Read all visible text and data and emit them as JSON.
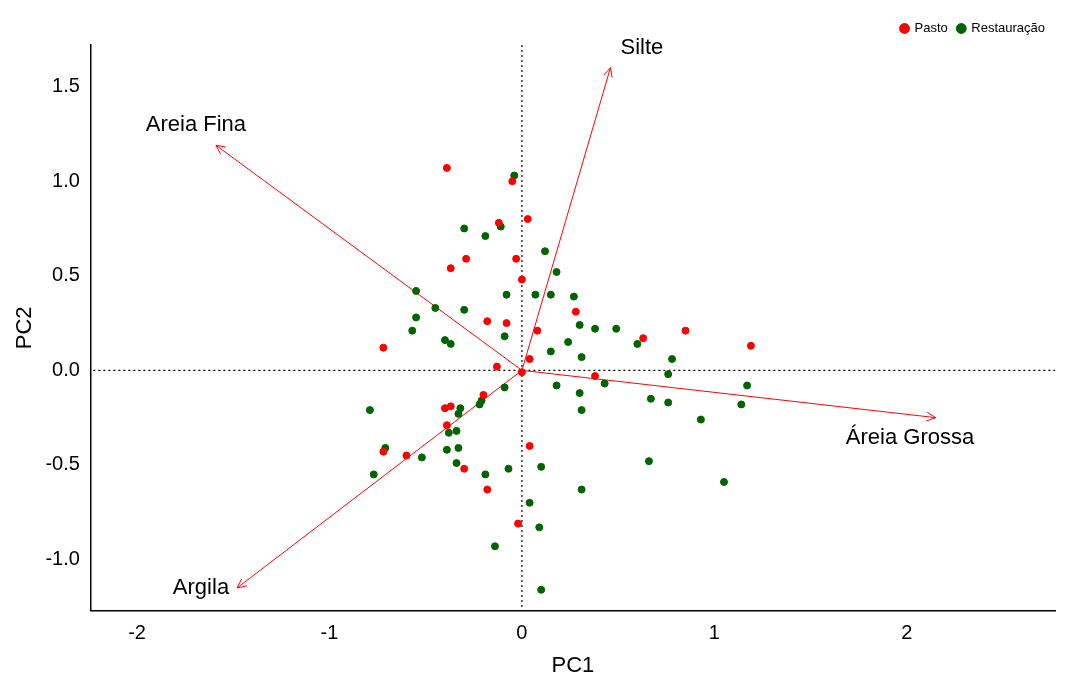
{
  "chart_data": {
    "type": "scatter",
    "xlabel": "PC1",
    "ylabel": "PC2",
    "xlim": [
      -2.24,
      2.77
    ],
    "ylim": [
      -1.27,
      1.72
    ],
    "xticks": [
      -2,
      -1,
      0,
      1,
      2
    ],
    "yticks": [
      {
        "value": -1,
        "label": "-1.0"
      },
      -0.5,
      {
        "value": 0,
        "label": "0.0"
      },
      0.5,
      {
        "value": 1,
        "label": "1.0"
      },
      1.5
    ],
    "grid": false,
    "legend": "top right",
    "marker": "circle",
    "series": [
      {
        "name": "Pasto",
        "color": "#ff0000",
        "x": [
          -0.39,
          -0.05,
          0.03,
          -0.12,
          -0.03,
          -0.29,
          -0.37,
          0.0,
          -0.18,
          -0.08,
          0.08,
          0.04,
          -0.13,
          0.0,
          0.28,
          -0.72,
          0.63,
          0.85,
          1.19,
          0.38,
          -0.2,
          -0.4,
          -0.37,
          -0.39,
          -0.72,
          -0.6,
          -0.3,
          -0.18,
          0.04,
          -0.02
        ],
        "values": [
          1.07,
          1.0,
          0.8,
          0.78,
          0.59,
          0.59,
          0.54,
          0.48,
          0.26,
          0.25,
          0.21,
          0.06,
          0.02,
          -0.01,
          0.31,
          0.12,
          0.17,
          0.21,
          0.13,
          -0.03,
          -0.13,
          -0.2,
          -0.19,
          -0.29,
          -0.43,
          -0.45,
          -0.52,
          -0.63,
          -0.4,
          -0.81
        ]
      },
      {
        "name": "Restauração",
        "color": "#006400",
        "x": [
          -0.04,
          -0.11,
          -0.3,
          -0.19,
          0.12,
          0.18,
          -0.08,
          0.07,
          0.15,
          0.27,
          -0.55,
          -0.45,
          -0.3,
          -0.55,
          -0.57,
          -0.4,
          -0.37,
          -0.09,
          0.3,
          0.38,
          0.24,
          0.31,
          0.15,
          0.49,
          0.6,
          0.78,
          0.76,
          0.43,
          0.18,
          0.3,
          0.31,
          0.67,
          0.76,
          0.93,
          1.14,
          1.17,
          0.66,
          1.05,
          0.31,
          -0.09,
          -0.22,
          -0.21,
          -0.79,
          -0.32,
          -0.33,
          -0.38,
          -0.34,
          -0.71,
          -0.52,
          -0.39,
          -0.33,
          -0.34,
          -0.77,
          -0.19,
          -0.07,
          0.1,
          0.04,
          0.09,
          -0.14,
          0.1
        ],
        "values": [
          1.03,
          0.76,
          0.75,
          0.71,
          0.63,
          0.52,
          0.4,
          0.4,
          0.4,
          0.39,
          0.42,
          0.33,
          0.32,
          0.28,
          0.21,
          0.16,
          0.14,
          0.18,
          0.24,
          0.22,
          0.15,
          0.07,
          0.1,
          0.22,
          0.14,
          0.06,
          -0.02,
          -0.07,
          -0.08,
          -0.12,
          -0.21,
          -0.15,
          -0.17,
          -0.26,
          -0.18,
          -0.08,
          -0.48,
          -0.59,
          -0.63,
          -0.09,
          -0.18,
          -0.16,
          -0.21,
          -0.2,
          -0.23,
          -0.33,
          -0.32,
          -0.41,
          -0.46,
          -0.42,
          -0.41,
          -0.49,
          -0.55,
          -0.55,
          -0.52,
          -0.51,
          -0.7,
          -0.83,
          -0.93,
          -1.16
        ]
      },
      {
        "type": "line",
        "color": "#ff0000",
        "marker": "none",
        "x": [
          0,
          0.46
        ],
        "values": [
          0,
          1.6
        ]
      },
      {
        "type": "line",
        "color": "#ff0000",
        "marker": "none",
        "x": [
          0,
          -1.59
        ],
        "values": [
          0,
          1.19
        ]
      },
      {
        "type": "line",
        "color": "#ff0000",
        "marker": "none",
        "x": [
          0,
          2.15
        ],
        "values": [
          0,
          -0.25
        ]
      },
      {
        "type": "line",
        "color": "#ff0000",
        "marker": "none",
        "x": [
          0,
          -1.48
        ],
        "values": [
          0,
          -1.15
        ]
      }
    ],
    "ref_lines": [
      {
        "axis": "x",
        "value": 0,
        "color": "#000000",
        "line_style": "dotted"
      },
      {
        "axis": "y",
        "value": 0,
        "color": "#000000",
        "line_style": "dotted"
      }
    ],
    "annotations": [
      {
        "text": "Silte",
        "x": 0.46,
        "y": 1.6
      },
      {
        "text": "Areia Fina",
        "x": -1.59,
        "y": 1.19
      },
      {
        "text": "Áreia Grossa",
        "x": 2.15,
        "y": -0.25
      },
      {
        "text": "Argila",
        "x": -1.48,
        "y": -1.15
      }
    ]
  }
}
